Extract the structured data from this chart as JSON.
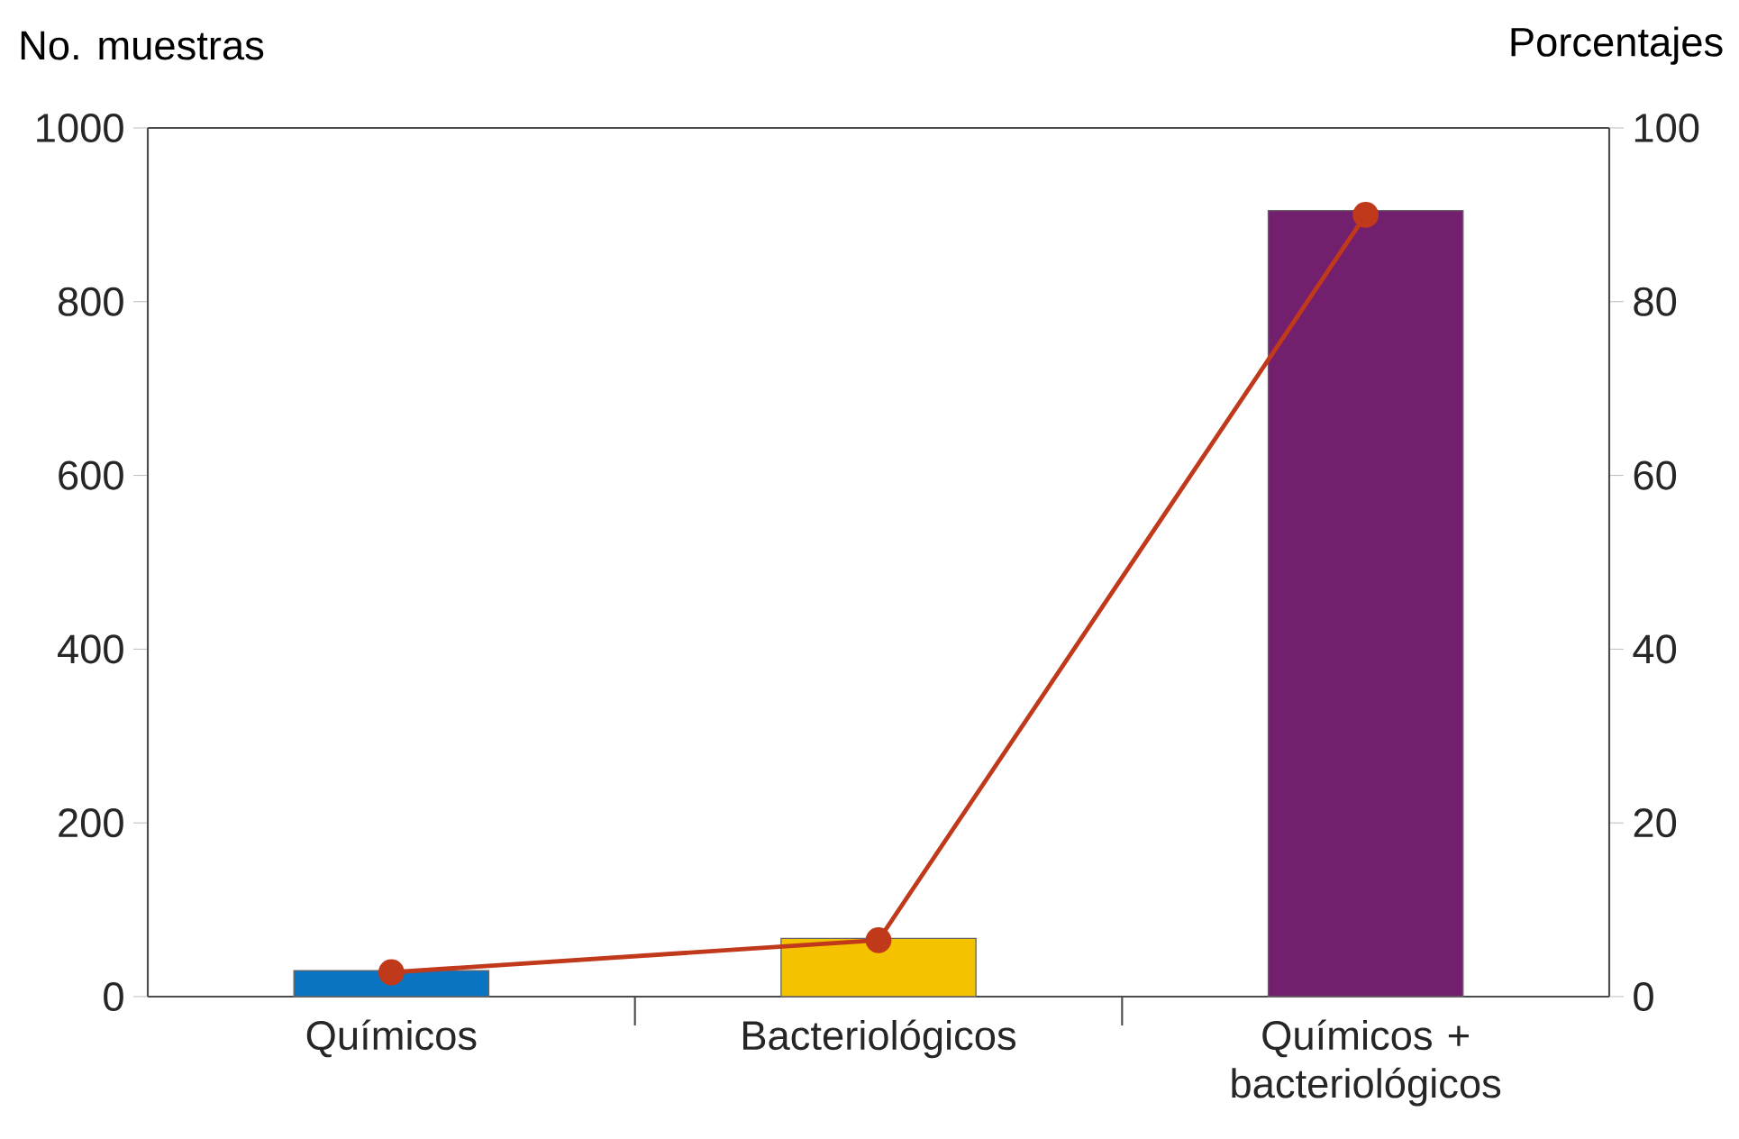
{
  "chart_data": {
    "type": "bar",
    "ylabel": "No. muestras",
    "y2label": "Porcentajes",
    "categories": [
      "Químicos",
      "Bacteriológicos",
      "Químicos + bacteriológicos"
    ],
    "series": [
      {
        "colors": [
          "#0a74c2",
          "#f5c200",
          "#72206e"
        ],
        "values": [
          30,
          67,
          905
        ]
      },
      {
        "type": "line",
        "axis": "y2",
        "color": "#c0391b",
        "marker": "circle",
        "line_style": "solid",
        "values": [
          2.8,
          6.5,
          90
        ]
      }
    ],
    "ylim": [
      0,
      1000
    ],
    "yticks": [
      0,
      200,
      400,
      600,
      800,
      1000
    ],
    "y2lim": [
      0,
      100
    ],
    "y2ticks": [
      0,
      20,
      40,
      60,
      80,
      100
    ]
  }
}
